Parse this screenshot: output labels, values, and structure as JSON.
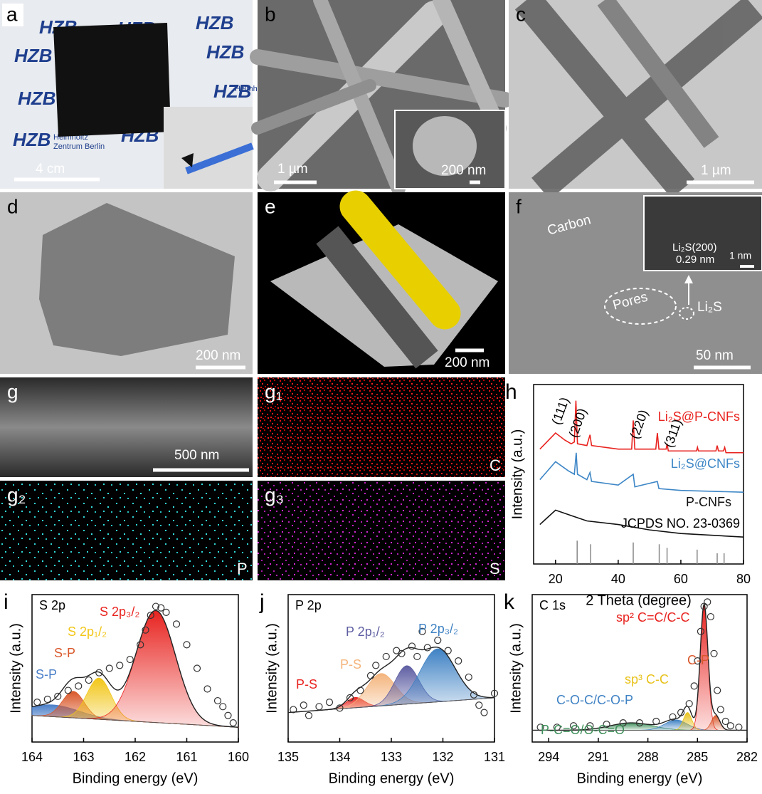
{
  "panels": [
    {
      "label": "a",
      "scale_bar": "4 cm",
      "watermark": [
        "HZB",
        "Helmholtz",
        "Zentrum Berlin"
      ]
    },
    {
      "label": "b",
      "scale_bar": "1 µm",
      "inset_scale_bar": "200 nm"
    },
    {
      "label": "c",
      "scale_bar": "1 µm"
    },
    {
      "label": "d",
      "scale_bar": "200 nm"
    },
    {
      "label": "e",
      "scale_bar": "200 nm"
    },
    {
      "label": "f",
      "scale_bar": "50 nm",
      "annotations": [
        "Carbon",
        "Pores",
        "Li₂S"
      ],
      "inset_annotations": [
        "Li₂S(200)",
        "0.29 nm"
      ],
      "inset_scale_bar": "1 nm"
    },
    {
      "label": "g",
      "scale_bar": "500 nm"
    },
    {
      "label": "g₁",
      "element": "C"
    },
    {
      "label": "g₂",
      "element": "P"
    },
    {
      "label": "g₃",
      "element": "S"
    }
  ],
  "chart_data": [
    {
      "type": "line",
      "panel": "h",
      "xlabel": "2 Theta (degree)",
      "ylabel": "Intensity (a.u.)",
      "xlim": [
        13,
        80
      ],
      "xticks": [
        20,
        40,
        60,
        80
      ],
      "ylim": [
        0,
        100
      ],
      "series": [
        {
          "name": "Li₂S@P-CNFs",
          "color": "#e8231f",
          "x": [
            15,
            20,
            23,
            25,
            26,
            26.5,
            27,
            30,
            31,
            31.5,
            40,
            44.3,
            44.8,
            45.3,
            52,
            52.5,
            53,
            55.3,
            55.6,
            56,
            65,
            65.3,
            65.6,
            71.2,
            71.6,
            72,
            73.6,
            74,
            74.4,
            80
          ],
          "values": [
            64,
            73,
            69,
            67,
            68,
            91,
            67,
            66,
            72,
            66,
            64,
            64,
            80,
            64,
            64,
            73,
            64,
            64,
            67,
            63,
            63,
            65,
            63,
            63,
            66,
            63,
            63,
            65,
            62,
            62
          ]
        },
        {
          "name": "Li₂S@CNFs",
          "color": "#3d86c6",
          "x": [
            15,
            20,
            24,
            26,
            26.6,
            27,
            30,
            31,
            31.5,
            40,
            44.8,
            45.3,
            52.5,
            53,
            60,
            80
          ],
          "values": [
            47,
            57,
            52,
            50,
            62,
            50,
            47,
            51,
            46,
            44,
            50,
            43,
            46,
            42,
            41,
            40
          ]
        },
        {
          "name": "P-CNFs",
          "color": "#111111",
          "x": [
            15,
            20,
            25,
            30,
            40,
            50,
            60,
            80
          ],
          "values": [
            22,
            30,
            27,
            24,
            22,
            19,
            17,
            15
          ]
        }
      ],
      "reference": {
        "name": "JCPDS NO. 23-0369",
        "color": "#888888",
        "x": [
          26.9,
          31.2,
          44.8,
          53.1,
          55.6,
          65.2,
          71.6,
          73.8
        ],
        "values": [
          13,
          11,
          12,
          11,
          9,
          8,
          6,
          6
        ]
      },
      "annotations": [
        "(111)",
        "(200)",
        "(220)",
        "(311)"
      ]
    },
    {
      "type": "area",
      "panel": "i",
      "title": "S 2p",
      "xlabel": "Binding energy (eV)",
      "ylabel": "Intensity (a.u.)",
      "xlim": [
        164,
        160
      ],
      "xticks": [
        164,
        163,
        162,
        161,
        160
      ],
      "ylim": [
        0,
        100
      ],
      "baseline": [
        18,
        10
      ],
      "x": [
        163.9,
        163.7,
        163.5,
        163.3,
        163.1,
        162.9,
        162.7,
        162.5,
        162.3,
        162.1,
        161.9,
        161.8,
        161.7,
        161.6,
        161.5,
        161.4,
        161.2,
        161.0,
        160.8,
        160.6,
        160.4,
        160.3,
        160.2,
        160.1
      ],
      "values": [
        27,
        29,
        31,
        35,
        38,
        42,
        47,
        50,
        52,
        56,
        66,
        76,
        86,
        92,
        91,
        88,
        80,
        66,
        50,
        36,
        28,
        24,
        18,
        13
      ],
      "peaks": [
        {
          "name": "S-P",
          "color": "#4a7fc8",
          "center": 163.6,
          "height": 8,
          "fwhm": 1.2
        },
        {
          "name": "S-P",
          "color": "#d9582b",
          "center": 163.2,
          "height": 18,
          "fwhm": 0.5
        },
        {
          "name": "S 2p₁/₂",
          "color": "#f2c618",
          "center": 162.7,
          "height": 28,
          "fwhm": 0.55
        },
        {
          "name": "S 2p₃/₂",
          "color": "#e8231f",
          "center": 161.6,
          "height": 76,
          "fwhm": 0.9
        }
      ]
    },
    {
      "type": "area",
      "panel": "j",
      "title": "P 2p",
      "xlabel": "Binding energy (eV)",
      "ylabel": "Intensity (a.u.)",
      "xlim": [
        135,
        131
      ],
      "xticks": [
        135,
        134,
        133,
        132,
        131
      ],
      "ylim": [
        0,
        100
      ],
      "baseline": [
        20,
        30
      ],
      "x": [
        134.9,
        134.7,
        134.6,
        134.4,
        134.2,
        134.0,
        133.8,
        133.6,
        133.4,
        133.3,
        133.1,
        132.9,
        132.8,
        132.6,
        132.5,
        132.4,
        132.3,
        132.1,
        131.9,
        131.7,
        131.5,
        131.4,
        131.3,
        131.2,
        131.0
      ],
      "values": [
        22,
        25,
        18,
        24,
        27,
        23,
        30,
        35,
        45,
        52,
        58,
        62,
        60,
        65,
        58,
        75,
        64,
        69,
        62,
        55,
        44,
        32,
        25,
        20,
        33
      ],
      "peaks": [
        {
          "name": "P-S",
          "color": "#e8231f",
          "center": 133.7,
          "height": 7,
          "fwhm": 0.4
        },
        {
          "name": "P-S",
          "color": "#f4b47c",
          "center": 133.2,
          "height": 22,
          "fwhm": 0.65
        },
        {
          "name": "P 2p₁/₂",
          "color": "#5e5ea3",
          "center": 132.7,
          "height": 26,
          "fwhm": 0.55
        },
        {
          "name": "P 2p₃/₂",
          "color": "#3f82c4",
          "center": 132.1,
          "height": 36,
          "fwhm": 0.8
        }
      ]
    },
    {
      "type": "area",
      "panel": "k",
      "title": "C 1s",
      "xlabel": "Binding energy (eV)",
      "ylabel": "Intensity (a.u.)",
      "xlim": [
        295,
        282
      ],
      "xticks": [
        294,
        291,
        288,
        285,
        282
      ],
      "ylim": [
        0,
        100
      ],
      "baseline": [
        8,
        8
      ],
      "x": [
        294.5,
        293.5,
        292.5,
        291.5,
        290.5,
        289.5,
        288.5,
        287.5,
        286.5,
        286,
        285.5,
        285.2,
        285,
        284.8,
        284.6,
        284.4,
        284.2,
        284,
        283.8,
        283.6,
        283.3,
        283,
        282.5
      ],
      "values": [
        10,
        10,
        11,
        11,
        12,
        13,
        13,
        14,
        17,
        20,
        26,
        38,
        55,
        75,
        92,
        95,
        85,
        60,
        35,
        22,
        14,
        11,
        10
      ],
      "peaks": [
        {
          "name": "P-C=O/O-C=O",
          "color": "#3e8f5a",
          "center": 289,
          "height": 5,
          "fwhm": 3
        },
        {
          "name": "C-O-C/C-O-P",
          "color": "#3f82c4",
          "center": 286.3,
          "height": 7,
          "fwhm": 1.6
        },
        {
          "name": "sp³ C-C",
          "color": "#e8c21a",
          "center": 285.6,
          "height": 12,
          "fwhm": 0.6
        },
        {
          "name": "sp² C=C/C-C",
          "color": "#e8231f",
          "center": 284.6,
          "height": 85,
          "fwhm": 0.55
        },
        {
          "name": "C-P",
          "color": "#d9582b",
          "center": 283.9,
          "height": 10,
          "fwhm": 0.6
        }
      ]
    }
  ]
}
